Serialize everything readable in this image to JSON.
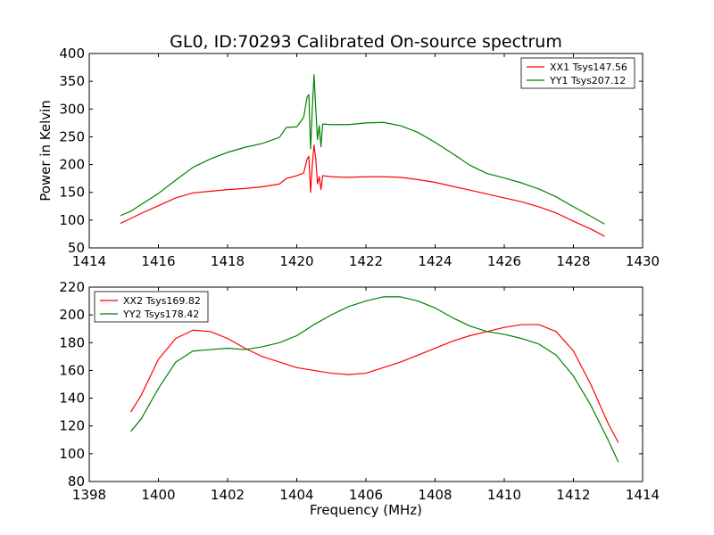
{
  "figure": {
    "title": "GL0, ID:70293 Calibrated On-source spectrum",
    "xlabel": "Frequency (MHz)"
  },
  "chart_data": [
    {
      "type": "line",
      "title": "GL0, ID:70293 Calibrated On-source spectrum",
      "xlabel": "",
      "ylabel": "Power in Kelvin",
      "xlim": [
        1414,
        1430
      ],
      "ylim": [
        50,
        400
      ],
      "xticks": [
        1414,
        1416,
        1418,
        1420,
        1422,
        1424,
        1426,
        1428,
        1430
      ],
      "yticks": [
        50,
        100,
        150,
        200,
        250,
        300,
        350,
        400
      ],
      "grid": false,
      "legend_position": "top-right",
      "series": [
        {
          "name": "XX1 Tsys147.56",
          "color": "#ff0000",
          "points": [
            [
              1414.9,
              94
            ],
            [
              1415.2,
              103
            ],
            [
              1415.5,
              112
            ],
            [
              1416,
              126
            ],
            [
              1416.5,
              140
            ],
            [
              1417,
              149
            ],
            [
              1417.5,
              152
            ],
            [
              1418,
              155
            ],
            [
              1418.5,
              157
            ],
            [
              1419,
              160
            ],
            [
              1419.5,
              165
            ],
            [
              1419.7,
              175
            ],
            [
              1420,
              180
            ],
            [
              1420.2,
              185
            ],
            [
              1420.3,
              210
            ],
            [
              1420.35,
              215
            ],
            [
              1420.4,
              150
            ],
            [
              1420.45,
              200
            ],
            [
              1420.5,
              235
            ],
            [
              1420.55,
              210
            ],
            [
              1420.6,
              165
            ],
            [
              1420.65,
              178
            ],
            [
              1420.7,
              155
            ],
            [
              1420.75,
              180
            ],
            [
              1421,
              178
            ],
            [
              1421.5,
              177
            ],
            [
              1422,
              178
            ],
            [
              1422.5,
              178
            ],
            [
              1423,
              177
            ],
            [
              1423.5,
              173
            ],
            [
              1424,
              168
            ],
            [
              1424.5,
              161
            ],
            [
              1425,
              154
            ],
            [
              1425.5,
              147
            ],
            [
              1426,
              140
            ],
            [
              1426.5,
              133
            ],
            [
              1427,
              124
            ],
            [
              1427.5,
              113
            ],
            [
              1428,
              98
            ],
            [
              1428.5,
              84
            ],
            [
              1428.9,
              71
            ]
          ]
        },
        {
          "name": "YY1 Tsys207.12",
          "color": "#008000",
          "points": [
            [
              1414.9,
              108
            ],
            [
              1415.2,
              116
            ],
            [
              1415.5,
              128
            ],
            [
              1416,
              148
            ],
            [
              1416.5,
              172
            ],
            [
              1417,
              195
            ],
            [
              1417.5,
              210
            ],
            [
              1418,
              222
            ],
            [
              1418.5,
              231
            ],
            [
              1419,
              238
            ],
            [
              1419.5,
              249
            ],
            [
              1419.7,
              267
            ],
            [
              1420,
              268
            ],
            [
              1420.2,
              285
            ],
            [
              1420.3,
              322
            ],
            [
              1420.35,
              326
            ],
            [
              1420.4,
              228
            ],
            [
              1420.45,
              300
            ],
            [
              1420.5,
              362
            ],
            [
              1420.55,
              300
            ],
            [
              1420.6,
              245
            ],
            [
              1420.65,
              270
            ],
            [
              1420.7,
              232
            ],
            [
              1420.75,
              273
            ],
            [
              1421,
              272
            ],
            [
              1421.5,
              272
            ],
            [
              1422,
              275
            ],
            [
              1422.5,
              276
            ],
            [
              1423,
              270
            ],
            [
              1423.5,
              258
            ],
            [
              1424,
              240
            ],
            [
              1424.5,
              220
            ],
            [
              1425,
              199
            ],
            [
              1425.5,
              184
            ],
            [
              1426,
              176
            ],
            [
              1426.5,
              167
            ],
            [
              1427,
              156
            ],
            [
              1427.5,
              142
            ],
            [
              1428,
              124
            ],
            [
              1428.5,
              107
            ],
            [
              1428.9,
              93
            ]
          ]
        }
      ]
    },
    {
      "type": "line",
      "title": "",
      "xlabel": "Frequency (MHz)",
      "ylabel": "",
      "xlim": [
        1398,
        1414
      ],
      "ylim": [
        80,
        220
      ],
      "xticks": [
        1398,
        1400,
        1402,
        1404,
        1406,
        1408,
        1410,
        1412,
        1414
      ],
      "yticks": [
        80,
        100,
        120,
        140,
        160,
        180,
        200,
        220
      ],
      "grid": false,
      "legend_position": "top-left",
      "series": [
        {
          "name": "XX2 Tsys169.82",
          "color": "#ff0000",
          "points": [
            [
              1399.2,
              130
            ],
            [
              1399.5,
              142
            ],
            [
              1400,
              168
            ],
            [
              1400.5,
              183
            ],
            [
              1401,
              189
            ],
            [
              1401.5,
              188
            ],
            [
              1402,
              183
            ],
            [
              1402.5,
              176
            ],
            [
              1403,
              170
            ],
            [
              1403.5,
              166
            ],
            [
              1404,
              162
            ],
            [
              1404.5,
              160
            ],
            [
              1405,
              158
            ],
            [
              1405.5,
              157
            ],
            [
              1406,
              158
            ],
            [
              1406.5,
              162
            ],
            [
              1407,
              166
            ],
            [
              1407.5,
              171
            ],
            [
              1408,
              176
            ],
            [
              1408.5,
              181
            ],
            [
              1409,
              185
            ],
            [
              1409.5,
              188
            ],
            [
              1410,
              191
            ],
            [
              1410.5,
              193
            ],
            [
              1411,
              193
            ],
            [
              1411.5,
              188
            ],
            [
              1412,
              174
            ],
            [
              1412.5,
              150
            ],
            [
              1413,
              122
            ],
            [
              1413.3,
              108
            ]
          ]
        },
        {
          "name": "YY2 Tsys178.42",
          "color": "#008000",
          "points": [
            [
              1399.2,
              116
            ],
            [
              1399.5,
              125
            ],
            [
              1400,
              147
            ],
            [
              1400.5,
              166
            ],
            [
              1401,
              174
            ],
            [
              1401.5,
              175
            ],
            [
              1402,
              176
            ],
            [
              1402.5,
              175
            ],
            [
              1403,
              177
            ],
            [
              1403.5,
              180
            ],
            [
              1404,
              185
            ],
            [
              1404.5,
              193
            ],
            [
              1405,
              200
            ],
            [
              1405.5,
              206
            ],
            [
              1406,
              210
            ],
            [
              1406.5,
              213
            ],
            [
              1407,
              213
            ],
            [
              1407.5,
              210
            ],
            [
              1408,
              205
            ],
            [
              1408.5,
              198
            ],
            [
              1409,
              192
            ],
            [
              1409.5,
              188
            ],
            [
              1410,
              186
            ],
            [
              1410.5,
              183
            ],
            [
              1411,
              179
            ],
            [
              1411.5,
              171
            ],
            [
              1412,
              156
            ],
            [
              1412.5,
              135
            ],
            [
              1413,
              110
            ],
            [
              1413.3,
              94
            ]
          ]
        }
      ]
    }
  ]
}
